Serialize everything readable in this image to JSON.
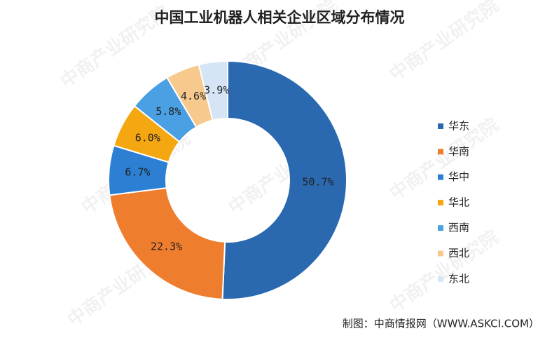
{
  "chart_data": {
    "type": "donut",
    "title": "中国工业机器人相关企业区域分布情况",
    "categories": [
      "华东",
      "华南",
      "华中",
      "华北",
      "西南",
      "西北",
      "东北"
    ],
    "values": [
      50.7,
      22.3,
      6.7,
      6.0,
      5.8,
      4.6,
      3.9
    ],
    "value_labels": [
      "50.7%",
      "22.3%",
      "6.7%",
      "6.0%",
      "5.8%",
      "4.6%",
      "3.9%"
    ],
    "colors": [
      "#2a69b0",
      "#ee7d2e",
      "#2c7fd2",
      "#f5a712",
      "#4aa0e2",
      "#f8c98c",
      "#d5e5f5"
    ],
    "legend": "right",
    "source": "制图：中商情报网（WWW.ASKCI.COM）",
    "watermark": "中商产业研究院"
  }
}
